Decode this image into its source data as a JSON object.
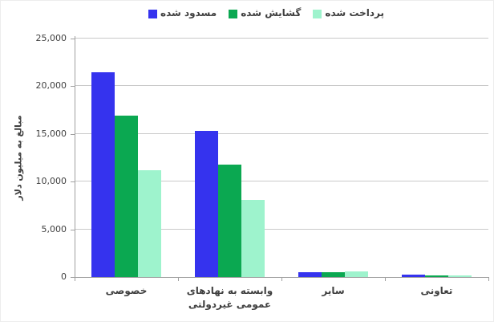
{
  "chart_data": {
    "type": "bar",
    "title": "",
    "ylabel": "مبالغ به میلیون دلار",
    "xlabel": "",
    "ylim": [
      0,
      25000
    ],
    "ytick_values": [
      0,
      5000,
      10000,
      15000,
      20000,
      25000
    ],
    "ytick_labels": [
      "0",
      "5,000",
      "10,000",
      "15,000",
      "20,000",
      "25,000"
    ],
    "grid": true,
    "legend_position": "top-center",
    "rtl": true,
    "categories": [
      "خصوصی",
      "وابسته به نهادهای عمومی غیردولتی",
      "سایر",
      "تعاونی"
    ],
    "series": [
      {
        "name": "مسدود شده",
        "color": "#3533EE",
        "values": [
          21500,
          15300,
          550,
          250
        ]
      },
      {
        "name": "گشایش شده",
        "color": "#0BA851",
        "values": [
          16900,
          11800,
          550,
          150
        ]
      },
      {
        "name": "پرداخت شده",
        "color": "#9EF3CD",
        "values": [
          11200,
          8100,
          600,
          200
        ]
      }
    ],
    "colors": {
      "gridline": "#c9c9c9",
      "axis": "#a0a0a0",
      "text": "#3f3f3f"
    }
  }
}
